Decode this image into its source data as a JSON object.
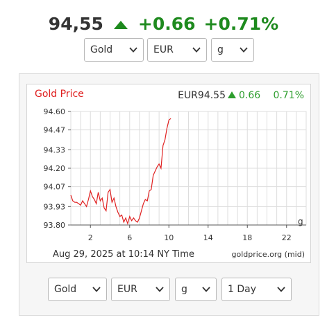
{
  "header": {
    "price": "94,55",
    "change": "+0.66",
    "change_pct": "+0.71%",
    "up_color": "#1e8a1e"
  },
  "top_selectors": {
    "metal": "Gold",
    "currency": "EUR",
    "unit": "g"
  },
  "bottom_selectors": {
    "metal": "Gold",
    "currency": "EUR",
    "unit": "g",
    "range": "1 Day"
  },
  "icons": {
    "trend": "triangle-up-icon",
    "dropdown": "chevron-down-icon"
  },
  "chart_data": {
    "type": "line",
    "title": "Gold Price",
    "title_color": "#e02020",
    "line_color": "#e02020",
    "quote_price": "EUR94.55",
    "quote_change": "0.66",
    "quote_pct": "0.71%",
    "quote_up_color": "#2e9e2e",
    "timestamp": "Aug 29, 2025 at 10:14 NY Time",
    "source": "goldprice.org (mid)",
    "unit_label": "g",
    "grid": true,
    "xlim": [
      0,
      24
    ],
    "ylim": [
      93.8,
      94.6
    ],
    "x_ticks": [
      2,
      6,
      10,
      14,
      18,
      22
    ],
    "x_tick_labels": [
      "2",
      "6",
      "10",
      "14",
      "18",
      "22"
    ],
    "y_ticks": [
      93.8,
      93.93,
      94.07,
      94.2,
      94.33,
      94.47,
      94.6
    ],
    "y_tick_labels": [
      "93.80",
      "93.93",
      "94.07",
      "94.20",
      "94.33",
      "94.47",
      "94.60"
    ],
    "x": [
      0.0,
      0.2,
      0.4,
      0.6,
      0.8,
      1.0,
      1.2,
      1.4,
      1.6,
      1.8,
      2.0,
      2.2,
      2.4,
      2.6,
      2.8,
      3.0,
      3.2,
      3.4,
      3.6,
      3.8,
      4.0,
      4.2,
      4.4,
      4.6,
      4.8,
      5.0,
      5.2,
      5.4,
      5.6,
      5.8,
      6.0,
      6.2,
      6.4,
      6.6,
      6.8,
      7.0,
      7.2,
      7.4,
      7.6,
      7.8,
      8.0,
      8.2,
      8.4,
      8.6,
      8.8,
      9.0,
      9.2,
      9.4,
      9.6,
      9.8,
      10.0,
      10.2
    ],
    "values": [
      94.01,
      93.97,
      93.96,
      93.96,
      93.95,
      93.94,
      93.97,
      93.95,
      93.93,
      93.98,
      94.04,
      94.0,
      93.98,
      93.95,
      94.03,
      93.97,
      93.99,
      93.92,
      93.9,
      94.03,
      94.05,
      93.96,
      93.99,
      93.93,
      93.89,
      93.86,
      93.87,
      93.82,
      93.85,
      93.81,
      93.86,
      93.83,
      93.85,
      93.83,
      93.82,
      93.85,
      93.9,
      93.95,
      93.98,
      93.97,
      94.04,
      94.05,
      94.15,
      94.18,
      94.21,
      94.23,
      94.2,
      94.36,
      94.4,
      94.48,
      94.54,
      94.55
    ]
  }
}
